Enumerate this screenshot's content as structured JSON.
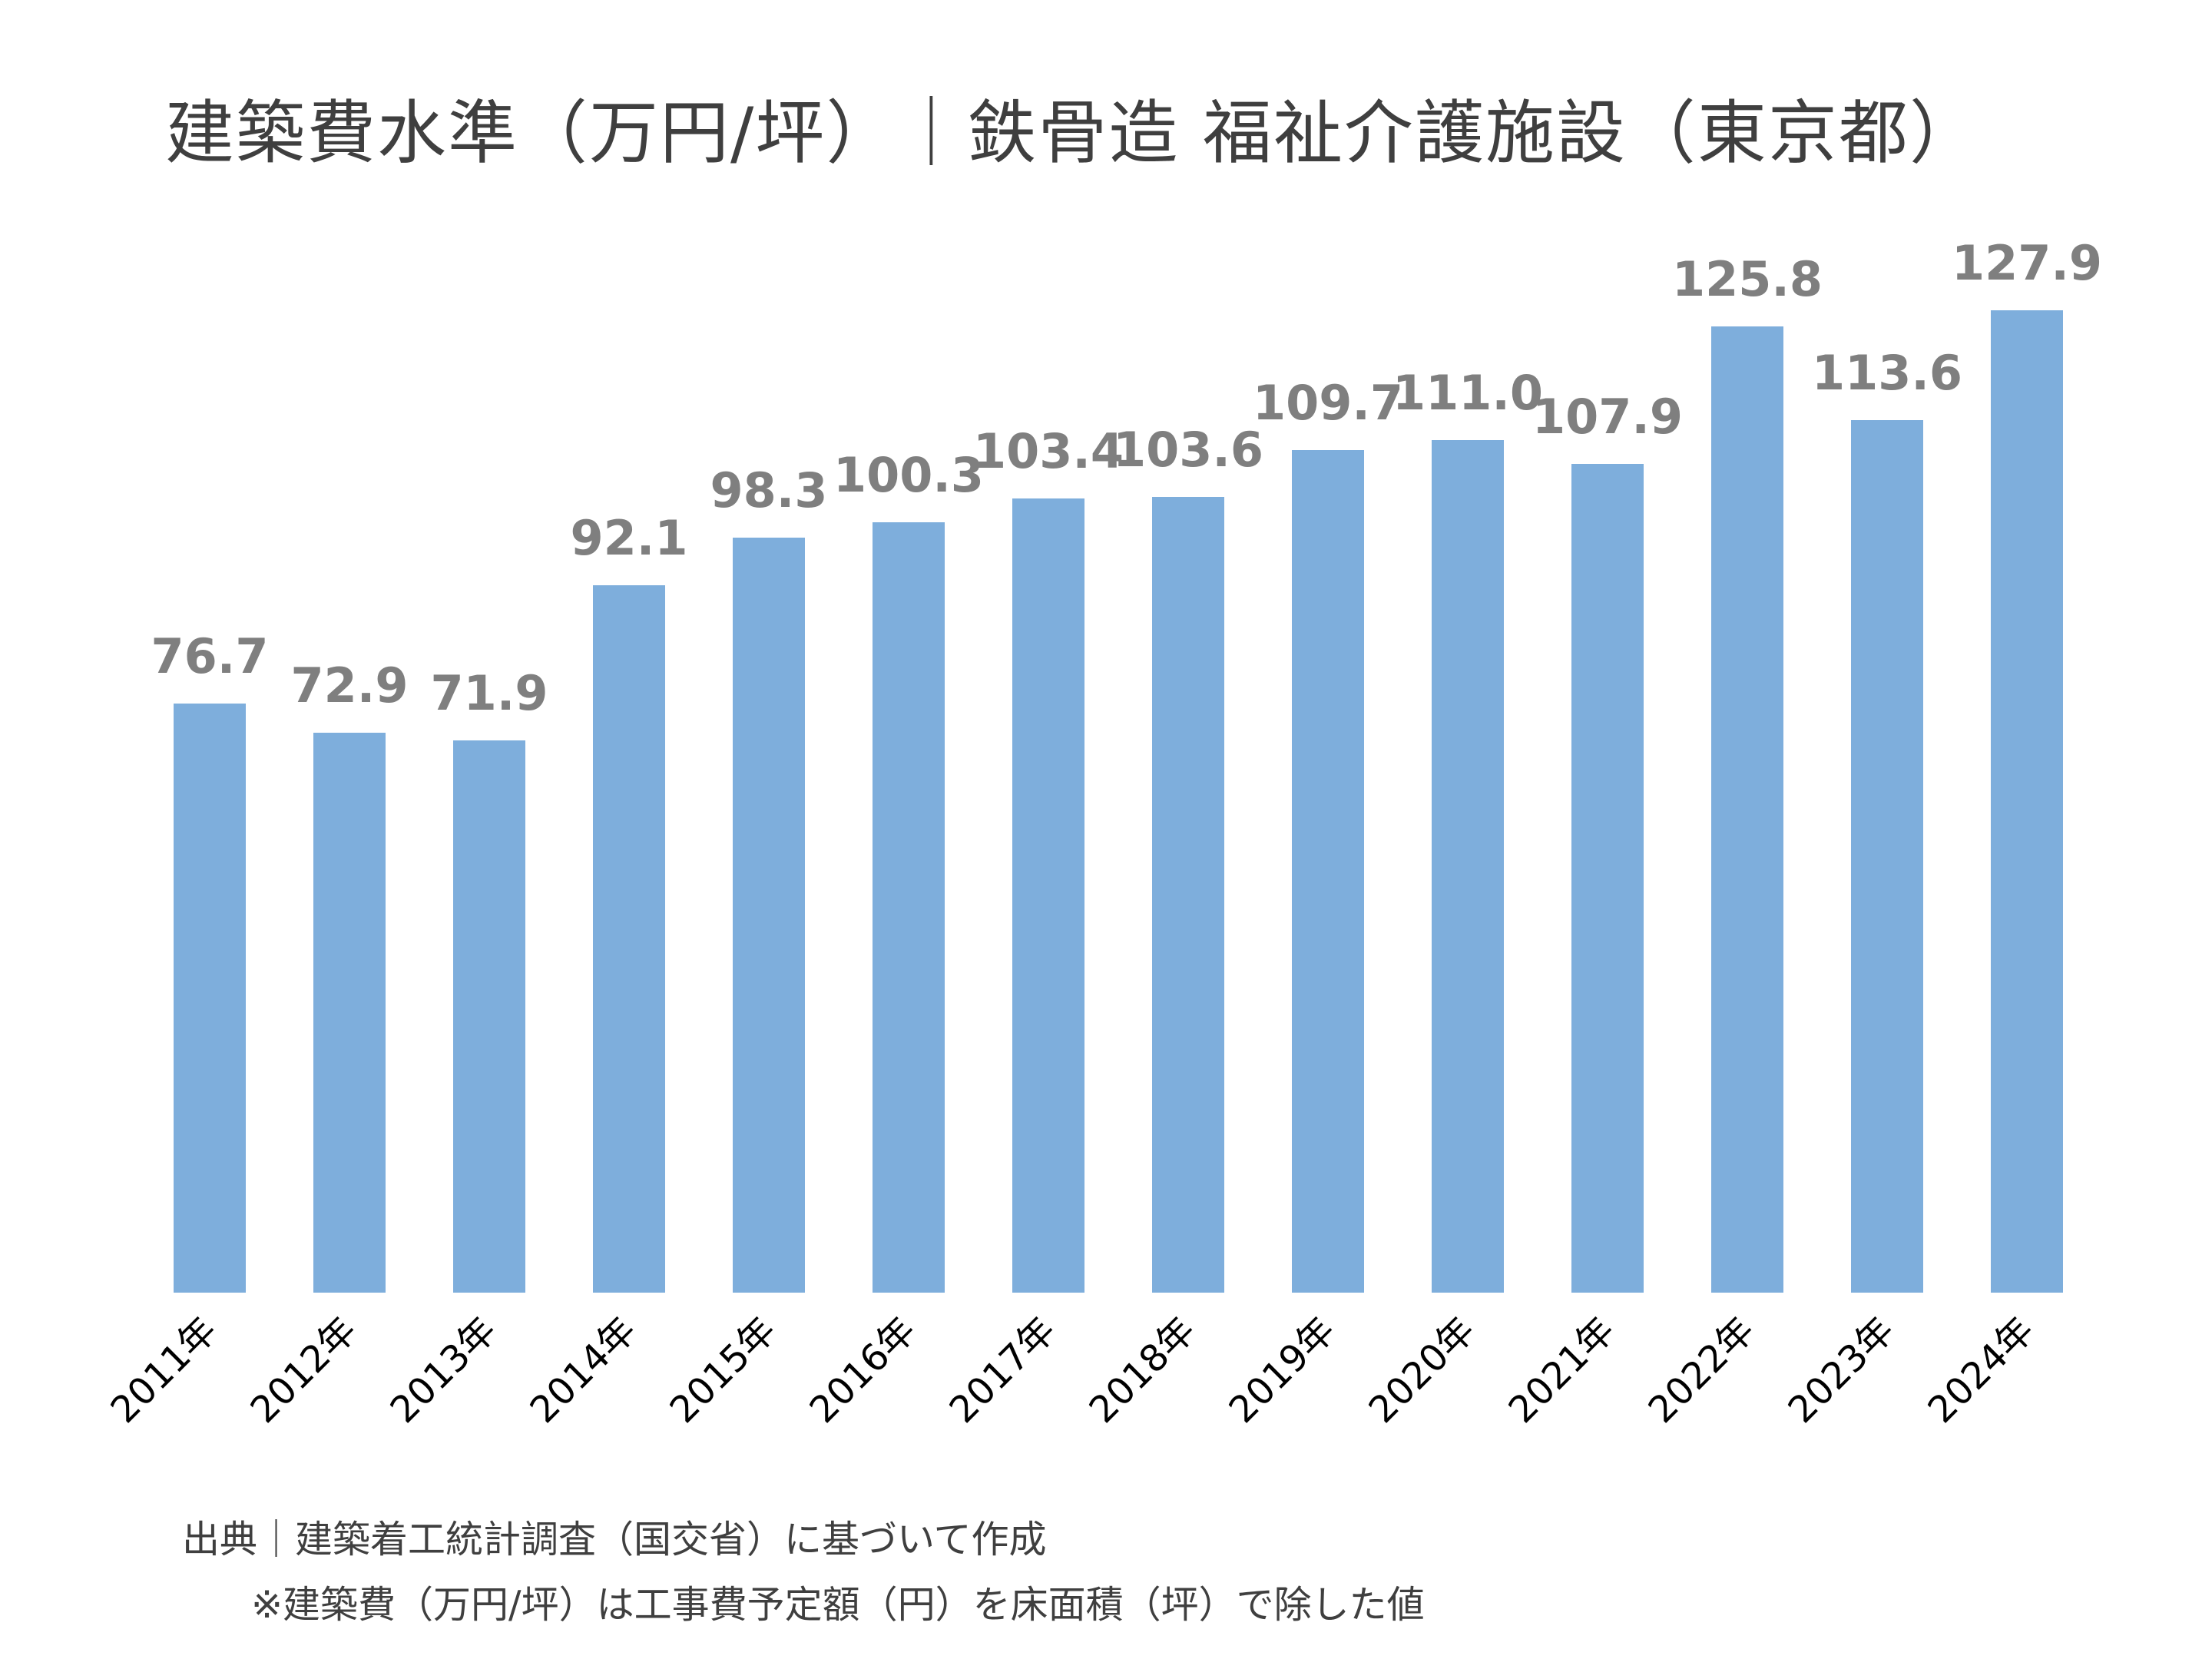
{
  "chart_data": {
    "type": "bar",
    "title": "建築費水準（万円/坪）｜鉄骨造 福祉介護施設（東京都）",
    "categories": [
      "2011年",
      "2012年",
      "2013年",
      "2014年",
      "2015年",
      "2016年",
      "2017年",
      "2018年",
      "2019年",
      "2020年",
      "2021年",
      "2022年",
      "2023年",
      "2024年"
    ],
    "values": [
      76.7,
      72.9,
      71.9,
      92.1,
      98.3,
      100.3,
      103.4,
      103.6,
      109.7,
      111.0,
      107.9,
      125.8,
      113.6,
      127.9
    ],
    "value_labels": [
      "76.7",
      "72.9",
      "71.9",
      "92.1",
      "98.3",
      "100.3",
      "103.4",
      "103.6",
      "109.7",
      "111.0",
      "107.9",
      "125.8",
      "113.6",
      "127.9"
    ],
    "xlabel": "",
    "ylabel": "",
    "ylim": [
      0,
      130
    ],
    "grid": false,
    "legend": "none",
    "bar_color": "#7eaedc",
    "label_color": "#7f7f7f",
    "tick_color": "#000000"
  },
  "notes": {
    "source": "出典｜建築着工統計調査（国交省）に基づいて作成",
    "calculation": "※建築費（万円/坪）は工事費予定額（円）を床面積（坪）で除した値"
  }
}
